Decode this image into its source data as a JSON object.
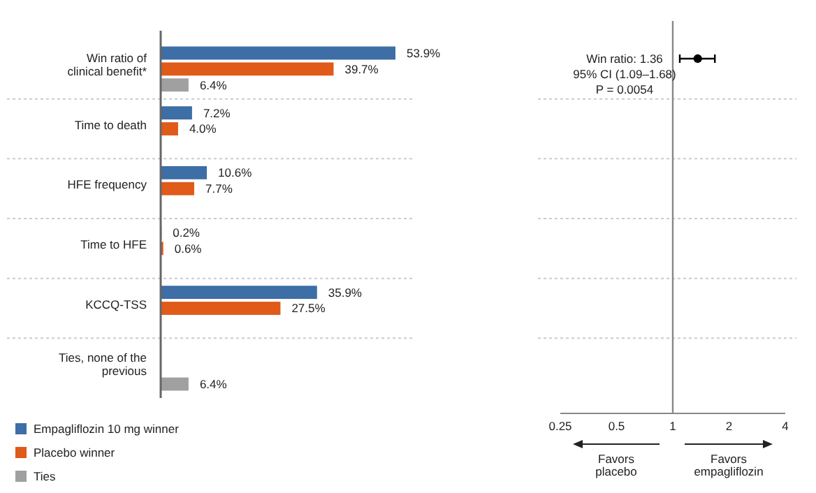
{
  "chart_data": [
    {
      "type": "bar",
      "orientation": "horizontal",
      "categories": [
        "Win ratio of clinical benefit*",
        "Time to death",
        "HFE frequency",
        "Time to HFE",
        "KCCQ-TSS",
        "Ties, none of the previous"
      ],
      "series": [
        {
          "name": "Empagliflozin 10 mg winner",
          "color": "#3d6ea5",
          "values": [
            53.9,
            7.2,
            10.6,
            0.2,
            35.9,
            null
          ],
          "value_labels": [
            "53.9%",
            "7.2%",
            "10.6%",
            "0.2%",
            "35.9%",
            null
          ]
        },
        {
          "name": "Placebo winner",
          "color": "#e05a1a",
          "values": [
            39.7,
            4.0,
            7.7,
            0.6,
            27.5,
            null
          ],
          "value_labels": [
            "39.7%",
            "4.0%",
            "7.7%",
            "0.6%",
            "27.5%",
            null
          ]
        },
        {
          "name": "Ties",
          "color": "#a0a0a0",
          "values": [
            6.4,
            null,
            null,
            null,
            null,
            6.4
          ],
          "value_labels": [
            "6.4%",
            null,
            null,
            null,
            null,
            "6.4%"
          ]
        }
      ],
      "tick_labels": "y",
      "grid": true,
      "legend": "bottom left"
    },
    {
      "type": "scatter",
      "orientation": "horizontal",
      "categories": [
        null
      ],
      "series": [
        {
          "color": "#000000",
          "values": [
            1.36
          ],
          "errors": [
            [
              1.09,
              1.68
            ]
          ]
        }
      ],
      "log": "x",
      "xlim": [
        0.25,
        4
      ],
      "xticks": [
        0.25,
        0.5,
        1,
        2,
        4
      ],
      "tick_labels": "x",
      "marker": "circle",
      "ref_lines": [
        {
          "axis": "x",
          "value": 1,
          "color": "#888888"
        }
      ],
      "annotations": [
        "Win ratio: 1.36",
        "95% CI (1.09–1.68)",
        "P = 0.0054",
        "Favors placebo",
        "Favors empagliflozin"
      ]
    }
  ]
}
